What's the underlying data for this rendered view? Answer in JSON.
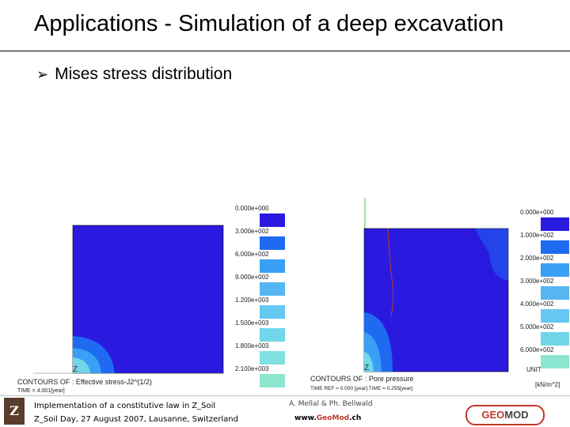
{
  "slide": {
    "title": "Applications - Simulation of a deep excavation",
    "bullet": "Mises stress distribution"
  },
  "left_plot": {
    "legend_labels": [
      "0.000e+000",
      "3.000e+002",
      "6.000e+002",
      "9.000e+002",
      "1.200e+003",
      "1.500e+003",
      "1.800e+003",
      "2.100e+003"
    ],
    "legend_colors": [
      "#2a1ae0",
      "#1e6bf2",
      "#3aa0f5",
      "#55b6f2",
      "#66c7f2",
      "#72d6ea",
      "#7fe0df",
      "#8de6d0"
    ],
    "axis_label": "Z",
    "contours_title": "CONTOURS OF : Effective stress-J2^(1/2)",
    "time_label": "TIME = 4.001[year]"
  },
  "right_plot": {
    "legend_labels": [
      "0.000e+000",
      "1.000e+002",
      "2.000e+002",
      "3.000e+002",
      "4.000e+002",
      "5.000e+002",
      "6.000e+002"
    ],
    "legend_colors": [
      "#2a1ae0",
      "#1e6bf2",
      "#3aa0f5",
      "#55b6f2",
      "#66c7f2",
      "#72d6ea",
      "#8de6d0"
    ],
    "axis_label": "Z",
    "contours_title": "CONTOURS OF : Pore pressure",
    "time_label": "TIME REF = 0.000 [year] TIME = 0.255[year]",
    "unit_label": "UNIT",
    "unit_value": "[kN/m^2]"
  },
  "footer": {
    "course_title": "Implementation of a constitutive law in Z_Soil",
    "event": "Z_Soil Day, 27 August 2007, Lausanne, Switzerland",
    "authors": "A. Mellal & Ph. Bellwald",
    "url_prefix": "www.",
    "url_geo": "Geo",
    "url_mod": "Mod",
    "url_suffix": ".ch",
    "logo_left": "Z",
    "logo_right_a": "GEO",
    "logo_right_b": "MOD"
  }
}
